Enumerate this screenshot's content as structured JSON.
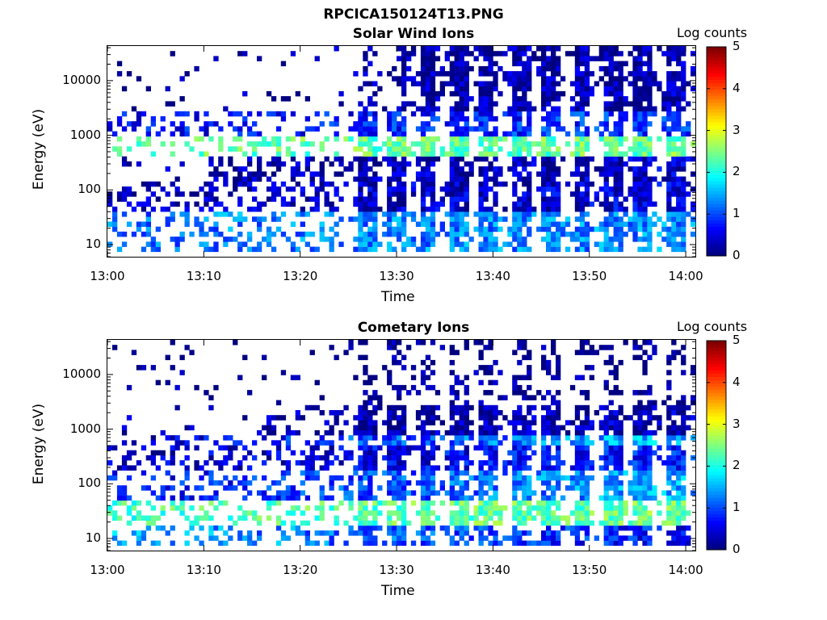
{
  "figure_title": "RPCICA150124T13.PNG",
  "chart_data": [
    {
      "type": "heatmap",
      "title": "Solar Wind Ions",
      "xlabel": "Time",
      "ylabel": "Energy (eV)",
      "x_ticks": [
        "13:00",
        "13:10",
        "13:20",
        "13:30",
        "13:40",
        "13:50",
        "14:00"
      ],
      "xlim": [
        "13:00",
        "14:01"
      ],
      "y_scale": "log",
      "y_ticks": [
        10,
        100,
        1000,
        10000
      ],
      "y_tick_labels": [
        "10",
        "100",
        "1000",
        "10000"
      ],
      "ylim": [
        6,
        43000
      ],
      "colorbar": {
        "label": "Log counts",
        "range": [
          0,
          5
        ],
        "ticks": [
          "0",
          "1",
          "2",
          "3",
          "4",
          "5"
        ],
        "colormap": "jet"
      },
      "bands": [
        {
          "e_lo": 8,
          "e_hi": 40,
          "counts_early": 1.2,
          "counts_late": 1.3
        },
        {
          "e_lo": 40,
          "e_hi": 130,
          "counts_early": 0.2,
          "counts_late": 0.5
        },
        {
          "e_lo": 130,
          "e_hi": 400,
          "counts_early": 0.1,
          "counts_late": 0.4
        },
        {
          "e_lo": 400,
          "e_hi": 900,
          "counts_early": 2.3,
          "counts_late": 2.4
        },
        {
          "e_lo": 900,
          "e_hi": 2500,
          "counts_early": 0.6,
          "counts_late": 0.9
        },
        {
          "e_lo": 2500,
          "e_hi": 43000,
          "counts_early": 0.05,
          "counts_late": 0.25
        }
      ]
    },
    {
      "type": "heatmap",
      "title": "Cometary Ions",
      "xlabel": "Time",
      "ylabel": "Energy (eV)",
      "x_ticks": [
        "13:00",
        "13:10",
        "13:20",
        "13:30",
        "13:40",
        "13:50",
        "14:00"
      ],
      "xlim": [
        "13:00",
        "14:01"
      ],
      "y_scale": "log",
      "y_ticks": [
        10,
        100,
        1000,
        10000
      ],
      "y_tick_labels": [
        "10",
        "100",
        "1000",
        "10000"
      ],
      "ylim": [
        6,
        43000
      ],
      "colorbar": {
        "label": "Log counts",
        "range": [
          0,
          5
        ],
        "ticks": [
          "0",
          "1",
          "2",
          "3",
          "4",
          "5"
        ],
        "colormap": "jet"
      },
      "bands": [
        {
          "e_lo": 7,
          "e_hi": 16,
          "counts_early": 1.5,
          "counts_late": 0.6
        },
        {
          "e_lo": 16,
          "e_hi": 45,
          "counts_early": 2.2,
          "counts_late": 2.4
        },
        {
          "e_lo": 45,
          "e_hi": 160,
          "counts_early": 0.6,
          "counts_late": 1.5
        },
        {
          "e_lo": 160,
          "e_hi": 500,
          "counts_early": 0.3,
          "counts_late": 0.8
        },
        {
          "e_lo": 500,
          "e_hi": 800,
          "counts_early": 0.4,
          "counts_late": 1.6
        },
        {
          "e_lo": 800,
          "e_hi": 2500,
          "counts_early": 0.1,
          "counts_late": 0.3
        },
        {
          "e_lo": 2500,
          "e_hi": 43000,
          "counts_early": 0.0,
          "counts_late": 0.02
        }
      ]
    }
  ]
}
